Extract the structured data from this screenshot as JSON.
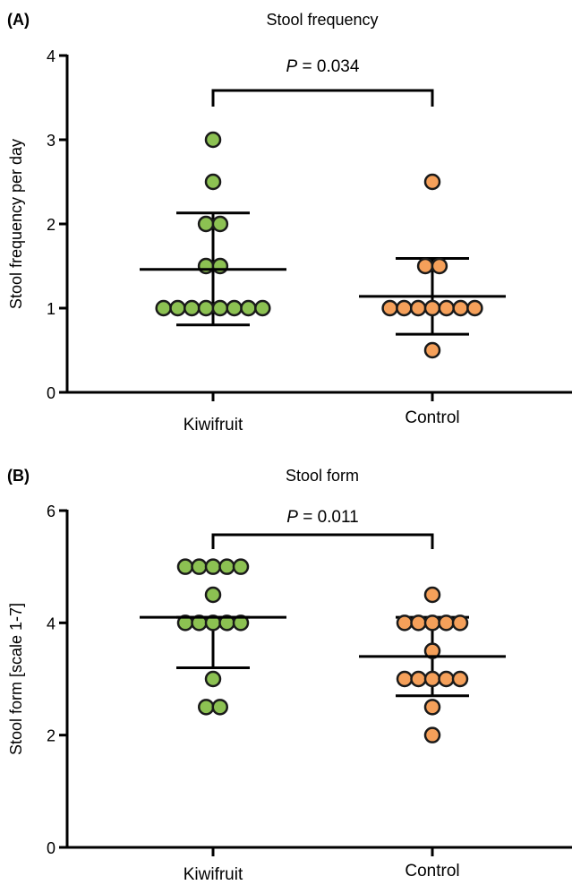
{
  "chart_data": [
    {
      "type": "scatter",
      "panel_label": "(A)",
      "title": "Stool frequency",
      "ylabel": "Stool frequency per day",
      "ylim": [
        0,
        4
      ],
      "yticks": [
        0,
        1,
        2,
        3,
        4
      ],
      "categories": [
        "Kiwifruit",
        "Control"
      ],
      "p_value": {
        "italic": "P",
        "text": " = 0.034"
      },
      "colors": {
        "Kiwifruit": "#8cc152",
        "Control": "#f5a05a"
      },
      "series": [
        {
          "category": "Kiwifruit",
          "mean": 1.46,
          "sd_low": 0.8,
          "sd_high": 2.13,
          "values": [
            3,
            2.5,
            2,
            2,
            1.5,
            1.5,
            1,
            1,
            1,
            1,
            1,
            1,
            1,
            1
          ]
        },
        {
          "category": "Control",
          "mean": 1.14,
          "sd_low": 0.69,
          "sd_high": 1.59,
          "values": [
            2.5,
            1.5,
            1.5,
            1,
            1,
            1,
            1,
            1,
            1,
            1,
            0.5
          ]
        }
      ]
    },
    {
      "type": "scatter",
      "panel_label": "(B)",
      "title": "Stool form",
      "ylabel": "Stool form [scale 1-7]",
      "ylim": [
        0,
        6
      ],
      "yticks": [
        0,
        2,
        4,
        6
      ],
      "categories": [
        "Kiwifruit",
        "Control"
      ],
      "p_value": {
        "italic": "P",
        "text": " = 0.011"
      },
      "colors": {
        "Kiwifruit": "#8cc152",
        "Control": "#f5a05a"
      },
      "series": [
        {
          "category": "Kiwifruit",
          "mean": 4.1,
          "sd_low": 3.2,
          "sd_high": 4.1,
          "values": [
            5,
            5,
            5,
            5,
            5,
            4.5,
            4,
            4,
            4,
            4,
            4,
            3,
            2.5,
            2.5
          ]
        },
        {
          "category": "Control",
          "mean": 3.4,
          "sd_low": 2.7,
          "sd_high": 4.1,
          "values": [
            4.5,
            4,
            4,
            4,
            4,
            4,
            3.5,
            3,
            3,
            3,
            3,
            3,
            2.5,
            2
          ]
        }
      ]
    }
  ]
}
